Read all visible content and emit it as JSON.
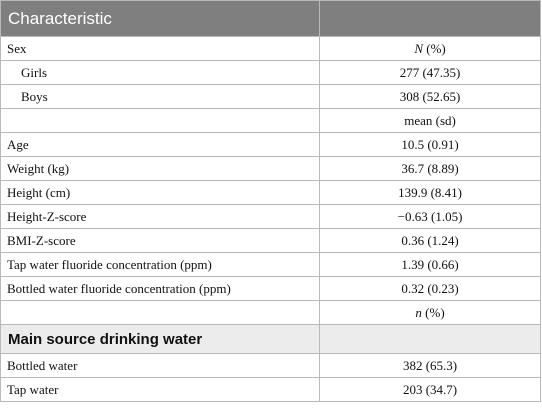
{
  "table": {
    "header": {
      "col1": "Characteristic",
      "col2": ""
    },
    "sex": {
      "label": "Sex",
      "n_header_letter": "N",
      "n_header_suffix": " (%)",
      "girls": {
        "label": "Girls",
        "value": "277 (47.35)"
      },
      "boys": {
        "label": "Boys",
        "value": "308 (52.65)"
      }
    },
    "mean_sd_header": "mean (sd)",
    "measures": [
      {
        "label": "Age",
        "value": "10.5 (0.91)"
      },
      {
        "label": "Weight (kg)",
        "value": "36.7 (8.89)"
      },
      {
        "label": "Height (cm)",
        "value": "139.9 (8.41)"
      },
      {
        "label": "Height-Z-score",
        "value": "−0.63 (1.05)"
      },
      {
        "label": "BMI-Z-score",
        "value": "0.36 (1.24)"
      },
      {
        "label": "Tap water fluoride concentration (ppm)",
        "value": "1.39 (0.66)"
      },
      {
        "label": "Bottled water fluoride concentration (ppm)",
        "value": "0.32 (0.23)"
      }
    ],
    "n_header_letter": "n",
    "n_header_suffix": " (%)",
    "section_title": "Main source drinking water",
    "sources": [
      {
        "label": "Bottled water",
        "value": "382 (65.3)"
      },
      {
        "label": "Tap water",
        "value": "203 (34.7)"
      }
    ]
  }
}
